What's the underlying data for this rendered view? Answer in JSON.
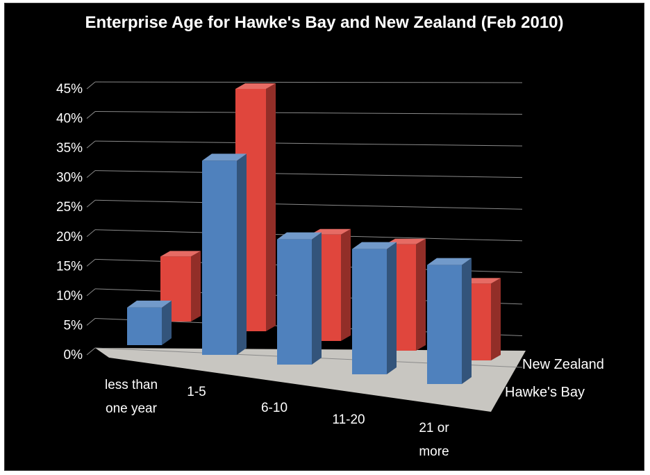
{
  "chart_data": {
    "type": "bar",
    "title": "Enterprise Age for Hawke's Bay and New Zealand (Feb 2010)",
    "categories": [
      "less than one year",
      "1-5",
      "6-10",
      "11-20",
      "21 or more"
    ],
    "series": [
      {
        "name": "Hawke's Bay",
        "color": "#4f81bd",
        "values": [
          6,
          31,
          20,
          20,
          19
        ]
      },
      {
        "name": "New Zealand",
        "color": "#e0463d",
        "values": [
          11,
          41,
          18,
          18,
          13
        ]
      }
    ],
    "y_ticks": [
      "0%",
      "5%",
      "10%",
      "15%",
      "20%",
      "25%",
      "30%",
      "35%",
      "40%",
      "45%"
    ],
    "ylim": [
      0,
      45
    ],
    "y_unit": "%",
    "grid": true
  }
}
